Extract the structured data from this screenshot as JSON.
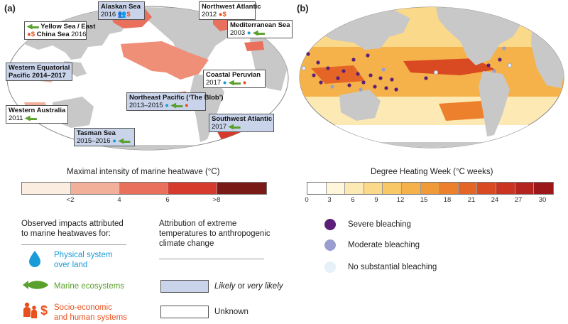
{
  "panel_a": {
    "label": "(a)",
    "callouts": [
      {
        "name": "Alaskan Sea",
        "year": "2016",
        "attribution": "likely",
        "impacts": [
          "socio",
          "socio-dollar"
        ]
      },
      {
        "name": "Northwest Atlantic",
        "year": "2012",
        "attribution": "unknown",
        "impacts": [
          "socio",
          "socio-dollar"
        ]
      },
      {
        "name": "Yellow Sea / East China Sea",
        "name_line1": "Yellow Sea / East",
        "name_line2": "China Sea",
        "year": "2016",
        "attribution": "unknown",
        "impacts": [
          "marine",
          "socio",
          "socio-dollar"
        ]
      },
      {
        "name": "Mediterranean Sea",
        "year": "2003",
        "attribution": "unknown",
        "impacts": [
          "physical",
          "marine"
        ]
      },
      {
        "name": "Western Equatorial Pacific",
        "name_line1": "Western Equatorial",
        "name_line2": "Pacific",
        "year": "2014–2017",
        "attribution": "likely",
        "impacts": []
      },
      {
        "name": "Coastal Peruvian",
        "year": "2017",
        "attribution": "unknown",
        "impacts": [
          "physical",
          "marine",
          "socio",
          "socio-dollar"
        ]
      },
      {
        "name": "Northeast Pacific (‘The Blob’)",
        "year": "2013–2015",
        "attribution": "likely",
        "impacts": [
          "physical",
          "marine",
          "socio",
          "socio-dollar"
        ]
      },
      {
        "name": "Western Australia",
        "year": "2011",
        "attribution": "unknown",
        "impacts": [
          "marine"
        ]
      },
      {
        "name": "Southwest Atlantic",
        "year": "2017",
        "attribution": "likely",
        "impacts": [
          "marine"
        ]
      },
      {
        "name": "Tasman Sea",
        "year": "2015–2016",
        "attribution": "likely",
        "impacts": [
          "physical",
          "marine"
        ]
      }
    ]
  },
  "panel_b": {
    "label": "(b)"
  },
  "legend_a": {
    "title": "Maximal intensity of marine heatwave (°C)",
    "colors": [
      "#fbeee0",
      "#f2b09a",
      "#e8705c",
      "#d63a2c",
      "#7a1a16"
    ],
    "ticks": [
      "<2",
      "4",
      "6",
      ">8"
    ]
  },
  "legend_b": {
    "title": "Degree Heating Week (°C weeks)",
    "colors": [
      "#ffffff",
      "#fff6dc",
      "#fde9b4",
      "#fbd98a",
      "#f8c766",
      "#f5b24a",
      "#f19a38",
      "#ec802c",
      "#e56526",
      "#da4a22",
      "#c93320",
      "#b4231e",
      "#9c171a"
    ],
    "ticks": [
      "0",
      "3",
      "6",
      "9",
      "12",
      "15",
      "18",
      "21",
      "24",
      "27",
      "30"
    ]
  },
  "impacts_legend": {
    "heading": "Observed impacts attributed to marine heatwaves for:",
    "heading_line1": "Observed impacts attributed",
    "heading_line2": "to marine heatwaves for:",
    "items": [
      {
        "icon": "water-drop-icon",
        "line1": "Physical system",
        "line2": "over land",
        "color": "#1a9ad6"
      },
      {
        "icon": "fish-icon",
        "line1": "Marine ecosystems",
        "line2": "",
        "color": "#5aa02c"
      },
      {
        "icon": "people-dollar-icon",
        "line1": "Socio-economic",
        "line2": "and human systems",
        "color": "#e8501e"
      }
    ]
  },
  "attribution_legend": {
    "heading_line1": "Attribution of extreme",
    "heading_line2": "temperatures to anthropogenic",
    "heading_line3": "climate change",
    "likely_italic": "Likely",
    "likely_mid": " or ",
    "likely_italic2": "very likely",
    "unknown": "Unknown",
    "likely_color": "#c9d4ea"
  },
  "bleaching_legend": {
    "items": [
      {
        "label": "Severe bleaching",
        "color": "#5b1f78"
      },
      {
        "label": "Moderate bleaching",
        "color": "#9a9dd0"
      },
      {
        "label": "No substantial bleaching",
        "color": "#e6f0f8"
      }
    ]
  }
}
